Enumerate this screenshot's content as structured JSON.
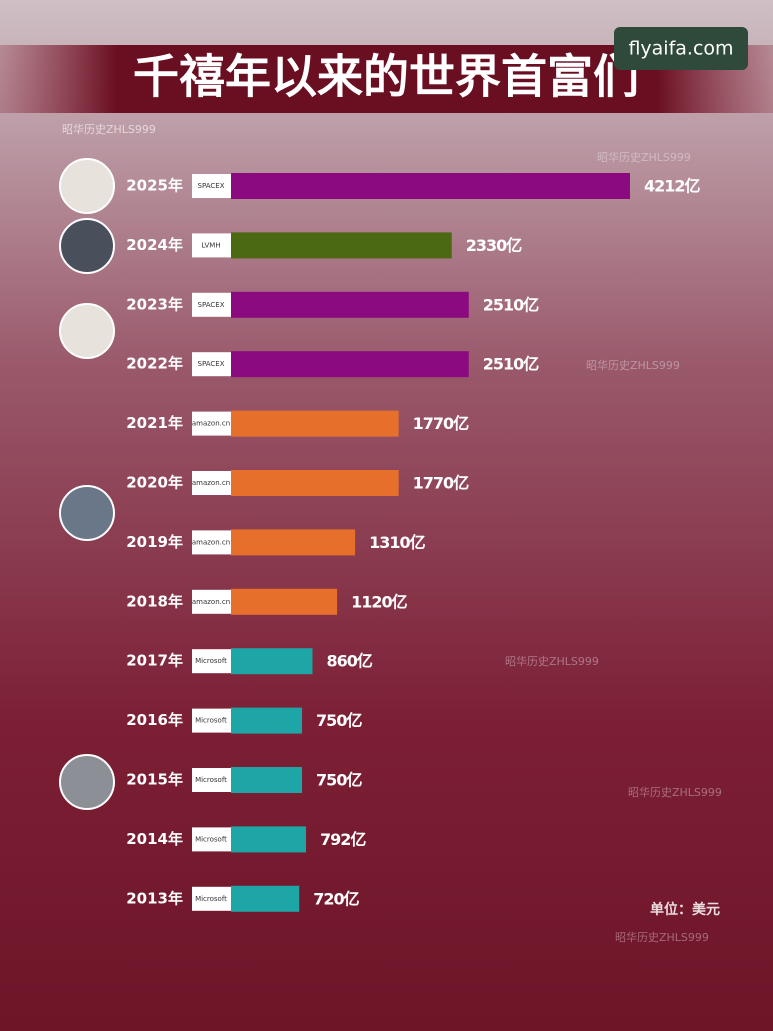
{
  "chart_data": {
    "type": "bar",
    "title": "千禧年以来的世界首富们",
    "source": "昭华历史ZHLS999",
    "site": "flyaifa.com",
    "unit_note": "单位：美元",
    "categories": [
      "2025年",
      "2024年",
      "2023年",
      "2022年",
      "2021年",
      "2020年",
      "2019年",
      "2018年",
      "2017年",
      "2016年",
      "2015年",
      "2014年",
      "2013年"
    ],
    "values": [
      4212,
      2330,
      2510,
      2510,
      1770,
      1770,
      1310,
      1120,
      860,
      750,
      750,
      792,
      720
    ],
    "value_labels": [
      "4212亿",
      "2330亿",
      "2510亿",
      "2510亿",
      "1770亿",
      "1770亿",
      "1310亿",
      "1120亿",
      "860亿",
      "750亿",
      "750亿",
      "792亿",
      "720亿"
    ],
    "logos": [
      "SPACEX",
      "LVMH",
      "SPACEX",
      "SPACEX",
      "amazon.cn",
      "amazon.cn",
      "amazon.cn",
      "amazon.cn",
      "Microsoft",
      "Microsoft",
      "Microsoft",
      "Microsoft",
      "Microsoft"
    ],
    "colors": [
      "#8c0a80",
      "#4b6812",
      "#8c0a80",
      "#8c0a80",
      "#e6702b",
      "#e6702b",
      "#e6702b",
      "#e6702b",
      "#1ea5a6",
      "#1ea5a6",
      "#1ea5a6",
      "#1ea5a6",
      "#1ea5a6"
    ]
  }
}
